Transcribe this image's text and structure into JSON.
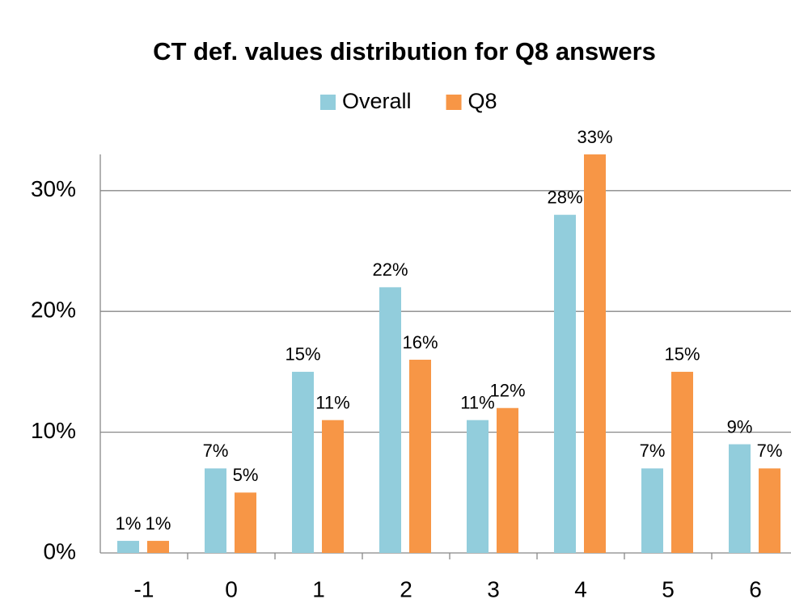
{
  "chart_data": {
    "type": "bar",
    "title": "CT def. values distribution for Q8 answers",
    "categories": [
      "-1",
      "0",
      "1",
      "2",
      "3",
      "4",
      "5",
      "6"
    ],
    "series": [
      {
        "name": "Overall",
        "color": "#92cddc",
        "values": [
          1,
          7,
          15,
          22,
          11,
          28,
          7,
          9
        ],
        "value_labels": [
          "1%",
          "7%",
          "15%",
          "22%",
          "11%",
          "28%",
          "7%",
          "9%"
        ]
      },
      {
        "name": "Q8",
        "color": "#f79646",
        "values": [
          1,
          5,
          11,
          16,
          12,
          33,
          15,
          7
        ],
        "value_labels": [
          "1%",
          "5%",
          "11%",
          "16%",
          "12%",
          "33%",
          "15%",
          "7%"
        ]
      }
    ],
    "ylim": [
      0,
      33
    ],
    "yticks": [
      {
        "value": 0,
        "label": "0%"
      },
      {
        "value": 10,
        "label": "10%"
      },
      {
        "value": 20,
        "label": "20%"
      },
      {
        "value": 30,
        "label": "30%"
      }
    ],
    "grid": true,
    "legend": "top"
  }
}
